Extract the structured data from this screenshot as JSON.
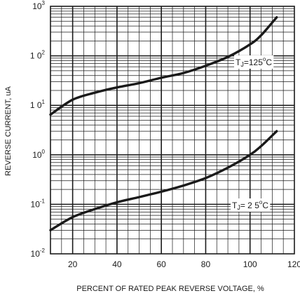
{
  "chart_data": {
    "type": "line",
    "title": "",
    "xlabel": "PERCENT OF RATED PEAK REVERSE VOLTAGE, %",
    "ylabel": "REVERSE CURRENT, uA",
    "xlim": [
      10,
      120
    ],
    "ylim": [
      0.01,
      1000
    ],
    "y_scale": "log",
    "x_ticks": [
      20,
      40,
      60,
      80,
      100,
      120
    ],
    "y_ticks": [
      {
        "value": 0.01,
        "mantissa": "10",
        "exp": "-2"
      },
      {
        "value": 0.1,
        "mantissa": "10",
        "exp": "-1"
      },
      {
        "value": 1,
        "mantissa": "10",
        "exp": "0"
      },
      {
        "value": 10,
        "mantissa": "1 0",
        "exp": "1"
      },
      {
        "value": 100,
        "mantissa": "1 0",
        "exp": "2"
      },
      {
        "value": 1000,
        "mantissa": "10",
        "exp": "3"
      }
    ],
    "grid": true,
    "series": [
      {
        "label": {
          "t": "T",
          "sub": "J",
          "rest": "=125",
          "deg": "o",
          "unit": "C"
        },
        "x": [
          10,
          20,
          30,
          40,
          50,
          60,
          70,
          80,
          90,
          100,
          105,
          112
        ],
        "y": [
          6.5,
          13,
          18,
          23,
          28,
          36,
          45,
          63,
          95,
          170,
          260,
          600
        ]
      },
      {
        "label": {
          "t": "T",
          "sub": "J",
          "rest": "= 2 5",
          "deg": "o",
          "unit": "C"
        },
        "x": [
          10,
          20,
          30,
          40,
          50,
          60,
          70,
          80,
          90,
          100,
          105,
          112
        ],
        "y": [
          0.03,
          0.055,
          0.08,
          0.11,
          0.14,
          0.18,
          0.24,
          0.34,
          0.55,
          1.0,
          1.5,
          3.0
        ]
      }
    ]
  }
}
